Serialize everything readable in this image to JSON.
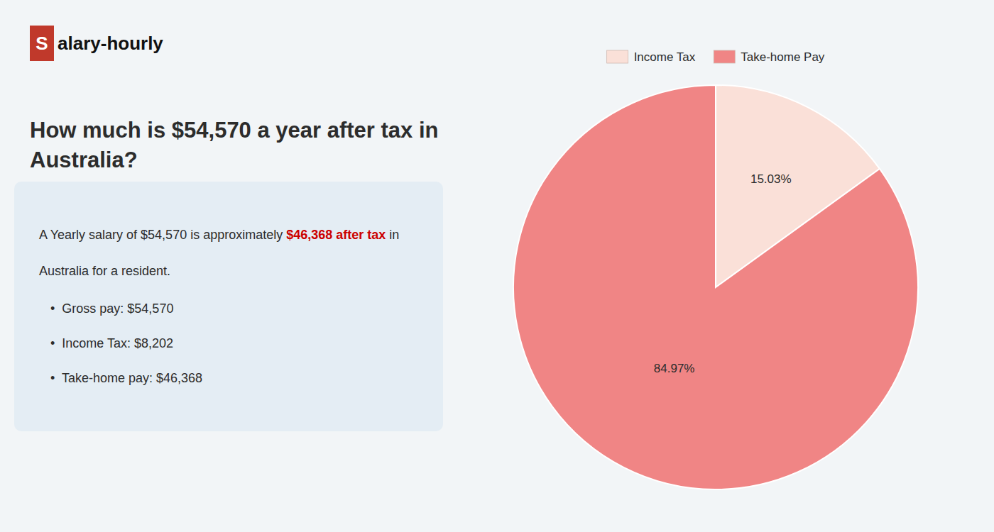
{
  "chart_data": {
    "type": "pie",
    "title": "How much is $54,570 a year after tax in\nAustralia?",
    "categories": [
      "Income Tax",
      "Take-home Pay"
    ],
    "values": [
      15.03,
      84.97
    ],
    "value_labels": [
      "15.03%",
      "84.97%"
    ],
    "colors": [
      "#fae0d8",
      "#f08585"
    ],
    "data_labels": true,
    "legend": "top",
    "annotations": [
      {
        "text": "S",
        "color": "#c0392b"
      },
      {
        "text": "alary-hourly"
      },
      {
        "text": "A Yearly salary of $54,570 is approximately "
      },
      {
        "text": "$46,368 after tax",
        "color": "#cc0000"
      },
      {
        "text": " in"
      },
      {
        "text": "Australia for a resident."
      },
      {
        "text": "•  Gross pay: $54,570"
      },
      {
        "text": "•  Income Tax: $8,202"
      },
      {
        "text": "•  Take-home pay: $46,368"
      }
    ]
  }
}
